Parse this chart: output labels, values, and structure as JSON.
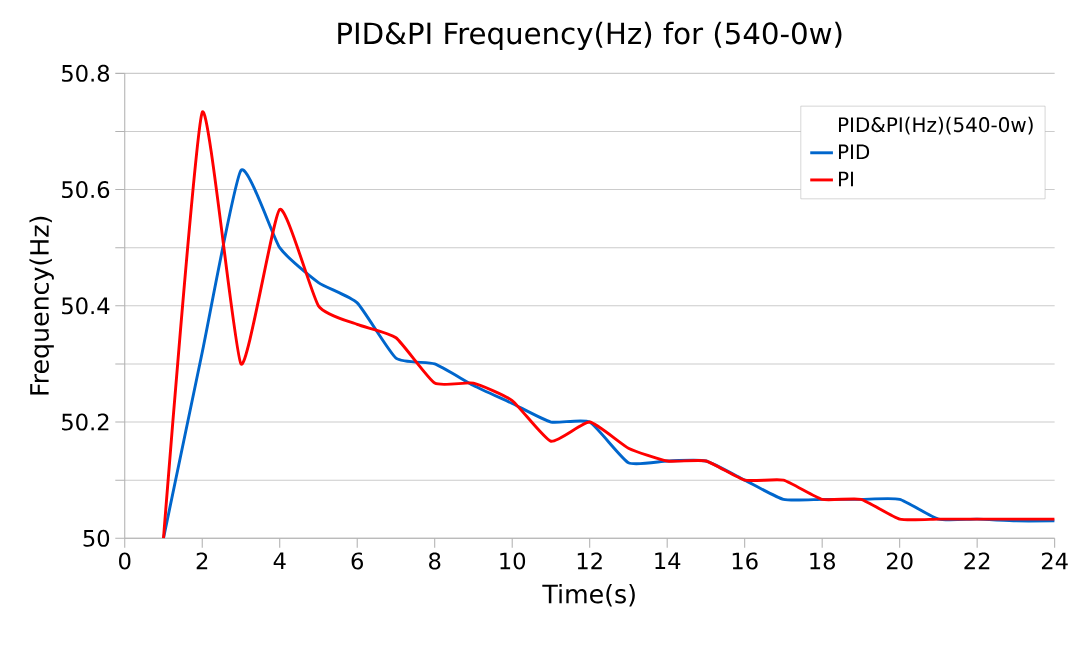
{
  "chart_data": {
    "type": "line",
    "title": "PID&PI Frequency(Hz) for (540-0w)",
    "xlabel": "Time(s)",
    "ylabel": "Frequency(Hz)",
    "legend_title": "PID&PI(Hz)(540-0w)",
    "x": [
      1,
      2,
      3,
      4,
      5,
      6,
      7,
      8,
      9,
      10,
      11,
      12,
      13,
      14,
      15,
      16,
      17,
      18,
      19,
      20,
      21,
      22,
      23,
      24
    ],
    "series": [
      {
        "name": "PID",
        "color": "#0066cc",
        "values": [
          50.0,
          50.32,
          50.633,
          50.5,
          50.44,
          50.405,
          50.31,
          50.3,
          50.263,
          50.232,
          50.2,
          50.2,
          50.13,
          50.133,
          50.133,
          50.1,
          50.067,
          50.067,
          50.067,
          50.067,
          50.033,
          50.033,
          50.03,
          50.03
        ]
      },
      {
        "name": "PI",
        "color": "#ff0000",
        "values": [
          50.0,
          50.733,
          50.3,
          50.566,
          50.4,
          50.368,
          50.345,
          50.267,
          50.267,
          50.237,
          50.167,
          50.2,
          50.155,
          50.133,
          50.133,
          50.1,
          50.1,
          50.067,
          50.067,
          50.033,
          50.033,
          50.033,
          50.033,
          50.033
        ]
      }
    ],
    "xlim": [
      0,
      24
    ],
    "xticks": [
      0,
      2,
      4,
      6,
      8,
      10,
      12,
      14,
      16,
      18,
      20,
      22,
      24
    ],
    "ylim": [
      50,
      50.8
    ],
    "yticks": [
      50,
      {
        "value": 50.1,
        "label": null
      },
      50.2,
      {
        "value": 50.3,
        "label": null
      },
      50.4,
      {
        "value": 50.5,
        "label": null
      },
      50.6,
      {
        "value": 50.7,
        "label": null
      },
      50.8
    ],
    "grid": "y",
    "legend": "top right",
    "marker": "none",
    "line_style": "solid"
  }
}
